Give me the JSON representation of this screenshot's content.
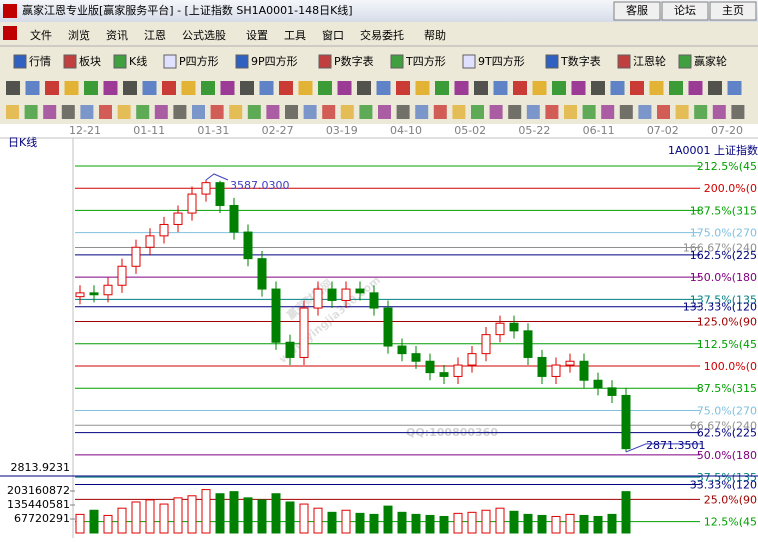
{
  "window": {
    "title": "赢家江恩专业版[赢家服务平台] - [上证指数  SH1A0001-148日K线]",
    "buttons": [
      "客服",
      "论坛",
      "主页"
    ]
  },
  "menu": [
    "文件",
    "浏览",
    "资讯",
    "江恩",
    "公式选股",
    "设置",
    "工具",
    "窗口",
    "交易委托",
    "帮助"
  ],
  "toolbar": [
    "行情",
    "板块",
    "K线",
    "P四方形",
    "9P四方形",
    "P数字表",
    "T四方形",
    "9T四方形",
    "T数字表",
    "江恩轮",
    "赢家轮"
  ],
  "chart_data": {
    "type": "candlestick",
    "period_label": "日K线",
    "symbol_label": "1A0001  上证指数",
    "dates": [
      "12-21",
      "01-11",
      "01-31",
      "02-27",
      "03-19",
      "04-10",
      "05-02",
      "05-22",
      "06-11",
      "07-02",
      "07-20"
    ],
    "open": [
      3280,
      3290,
      3285,
      3310,
      3360,
      3410,
      3440,
      3470,
      3500,
      3550,
      3580,
      3520,
      3450,
      3380,
      3300,
      3160,
      3120,
      3250,
      3300,
      3270,
      3300,
      3290,
      3250,
      3150,
      3130,
      3110,
      3080,
      3070,
      3100,
      3130,
      3180,
      3210,
      3190,
      3120,
      3070,
      3100,
      3110,
      3060,
      3040,
      3020
    ],
    "high": [
      3310,
      3310,
      3330,
      3380,
      3430,
      3460,
      3490,
      3520,
      3570,
      3587.03,
      3585,
      3540,
      3470,
      3400,
      3320,
      3180,
      3270,
      3320,
      3320,
      3320,
      3320,
      3310,
      3270,
      3170,
      3150,
      3130,
      3100,
      3120,
      3150,
      3200,
      3230,
      3230,
      3210,
      3140,
      3120,
      3130,
      3130,
      3080,
      3060,
      3040
    ],
    "low": [
      3260,
      3265,
      3265,
      3290,
      3340,
      3390,
      3420,
      3450,
      3480,
      3530,
      3500,
      3430,
      3360,
      3280,
      3140,
      3100,
      3100,
      3230,
      3250,
      3250,
      3270,
      3230,
      3130,
      3110,
      3090,
      3060,
      3050,
      3050,
      3080,
      3110,
      3160,
      3170,
      3100,
      3050,
      3050,
      3080,
      3040,
      3020,
      3000,
      2871.35
    ],
    "close": [
      3290,
      3285,
      3310,
      3360,
      3410,
      3440,
      3470,
      3500,
      3550,
      3580,
      3520,
      3450,
      3380,
      3300,
      3160,
      3120,
      3250,
      3300,
      3270,
      3300,
      3290,
      3250,
      3150,
      3130,
      3110,
      3080,
      3070,
      3100,
      3130,
      3180,
      3210,
      3190,
      3120,
      3070,
      3100,
      3110,
      3060,
      3040,
      3020,
      2880
    ],
    "up_color": "#e00000",
    "down_color": "#008000",
    "volume": [
      90000000,
      110000000,
      85000000,
      120000000,
      150000000,
      160000000,
      140000000,
      170000000,
      180000000,
      210000000,
      190000000,
      200000000,
      170000000,
      160000000,
      190000000,
      150000000,
      140000000,
      120000000,
      100000000,
      110000000,
      95000000,
      90000000,
      130000000,
      100000000,
      90000000,
      85000000,
      80000000,
      95000000,
      100000000,
      110000000,
      120000000,
      105000000,
      90000000,
      85000000,
      80000000,
      90000000,
      85000000,
      80000000,
      90000000,
      200000000
    ],
    "volume_ticks": [
      67720291,
      135440581,
      203160872
    ],
    "price_readout": "2813.9231",
    "annotations": [
      "3587.0300",
      "2871.3501"
    ],
    "watermark": [
      "赢家财富网",
      "www.yingjia360.com",
      "QQ:100800360"
    ],
    "gann_lines": [
      {
        "value": 212.5,
        "label": "212.5%(45",
        "color": "#00a000"
      },
      {
        "value": 200,
        "label": "200.0%(0",
        "color": "#d00000"
      },
      {
        "value": 187.5,
        "label": "187.5%(315",
        "color": "#00a000"
      },
      {
        "value": 175,
        "label": "175.0%(270",
        "color": "#80c0e0"
      },
      {
        "value": 166.67,
        "label": "166.67%(240",
        "color": "#909090"
      },
      {
        "value": 162.5,
        "label": "162.5%(225",
        "color": "#000080"
      },
      {
        "value": 150,
        "label": "150.0%(180",
        "color": "#800080"
      },
      {
        "value": 137.5,
        "label": "137.5%(135",
        "color": "#008080"
      },
      {
        "value": 133.33,
        "label": "133.33%(120",
        "color": "#000080"
      },
      {
        "value": 125,
        "label": "125.0%(90",
        "color": "#a00000"
      },
      {
        "value": 112.5,
        "label": "112.5%(45",
        "color": "#00a000"
      },
      {
        "value": 100,
        "label": "100.0%(0",
        "color": "#d00000"
      },
      {
        "value": 87.5,
        "label": "87.5%(315",
        "color": "#00a000"
      },
      {
        "value": 75,
        "label": "75.0%(270",
        "color": "#80c0e0"
      },
      {
        "value": 66.67,
        "label": "66.67%(240",
        "color": "#909090"
      },
      {
        "value": 62.5,
        "label": "62.5%(225",
        "color": "#000080"
      },
      {
        "value": 50,
        "label": "50.0%(180",
        "color": "#800080"
      },
      {
        "value": 37.5,
        "label": "37.5%(135",
        "color": "#008080"
      },
      {
        "value": 33.33,
        "label": "33.33%(120",
        "color": "#000080"
      },
      {
        "value": 25,
        "label": "25.0%(90",
        "color": "#a00000"
      },
      {
        "value": 12.5,
        "label": "12.5%(45",
        "color": "#00a000"
      }
    ]
  }
}
